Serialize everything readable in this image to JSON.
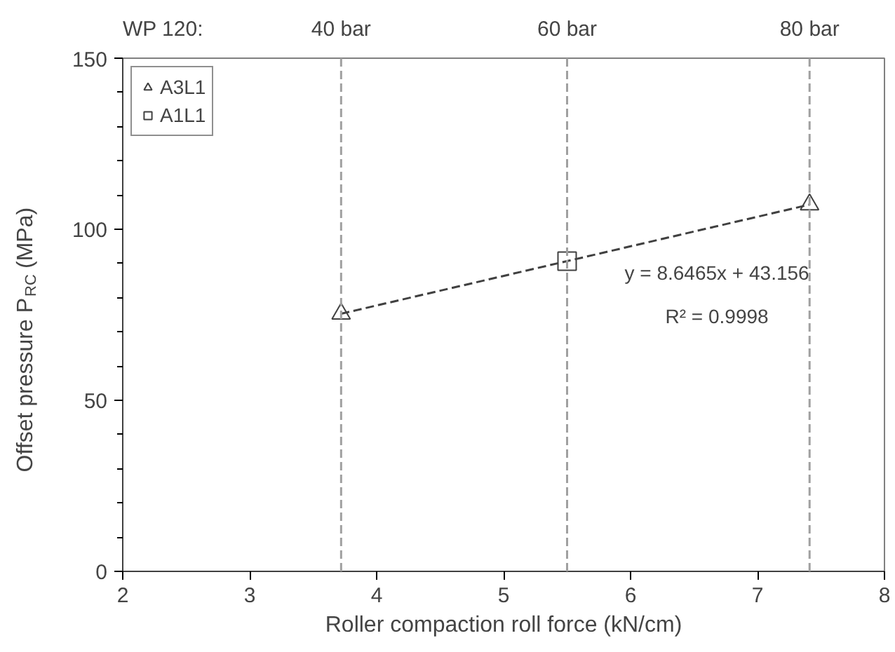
{
  "chart_data": {
    "type": "scatter",
    "xlabel": "Roller compaction roll force (kN/cm)",
    "ylabel": "Offset pressure P$_{RC}$ (MPa)",
    "xlim": [
      2,
      8
    ],
    "xticks": [
      2,
      3,
      4,
      5,
      6,
      7,
      8
    ],
    "ylim": [
      0,
      150
    ],
    "yticks": [
      0,
      50,
      100,
      150
    ],
    "grid": false,
    "legend": "top left",
    "series": [
      {
        "name": "A3L1",
        "type": "scatter",
        "marker": "triangle",
        "color": "#404040",
        "x": [
          3.72,
          7.41
        ],
        "values": [
          75.3,
          107.2
        ]
      },
      {
        "name": "A1L1",
        "type": "scatter",
        "marker": "square",
        "color": "#404040",
        "x": [
          5.5
        ],
        "values": [
          90.7
        ]
      },
      {
        "type": "line",
        "line_style": "dashed",
        "color": "#404040",
        "x": [
          3.72,
          7.41
        ],
        "values": [
          75.3,
          107.2
        ]
      }
    ],
    "ref_lines": [
      {
        "axis": "x",
        "value": 3.72,
        "label": "40 bar",
        "color": "#a0a0a0",
        "line_style": "dashed"
      },
      {
        "axis": "x",
        "value": 5.5,
        "label": "60 bar",
        "color": "#a0a0a0",
        "line_style": "dashed"
      },
      {
        "axis": "x",
        "value": 7.41,
        "label": "80 bar",
        "color": "#a0a0a0",
        "line_style": "dashed"
      }
    ],
    "annotations": [
      "WP 120:",
      "y = 8.6465x + 43.156",
      "R² = 0.9998"
    ]
  }
}
